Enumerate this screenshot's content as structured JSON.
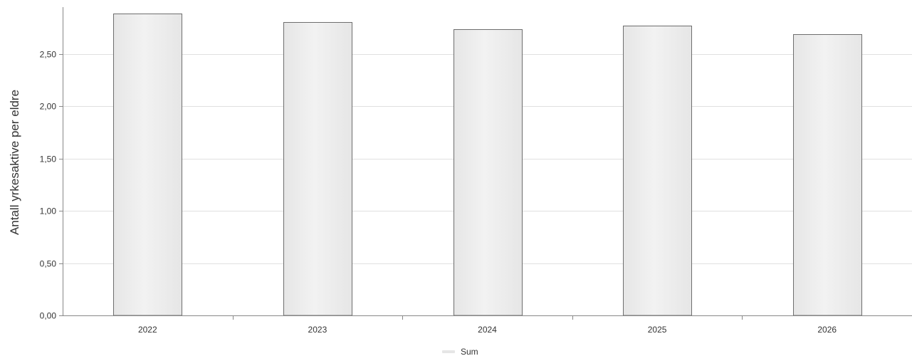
{
  "chart_data": {
    "type": "bar",
    "categories": [
      "2022",
      "2023",
      "2024",
      "2025",
      "2026"
    ],
    "series": [
      {
        "name": "Sum",
        "values": [
          2.89,
          2.81,
          2.74,
          2.77,
          2.69
        ]
      }
    ],
    "ylabel": "Antall yrkesaktive per eldre",
    "xlabel": "",
    "ylim": [
      0,
      2.95
    ],
    "yticks": [
      0,
      0.5,
      1.0,
      1.5,
      2.0,
      2.5
    ],
    "ytick_labels": [
      "0,00",
      "0,50",
      "1,00",
      "1,50",
      "2,00",
      "2,50"
    ],
    "grid": true,
    "legend_position": "bottom-center",
    "colors": {
      "bar_fill": "#ebebeb",
      "bar_stroke": "#6e6e6e",
      "grid": "#e0e0e0",
      "axis": "#888888",
      "legend_swatch": "#e6e6e6"
    }
  }
}
